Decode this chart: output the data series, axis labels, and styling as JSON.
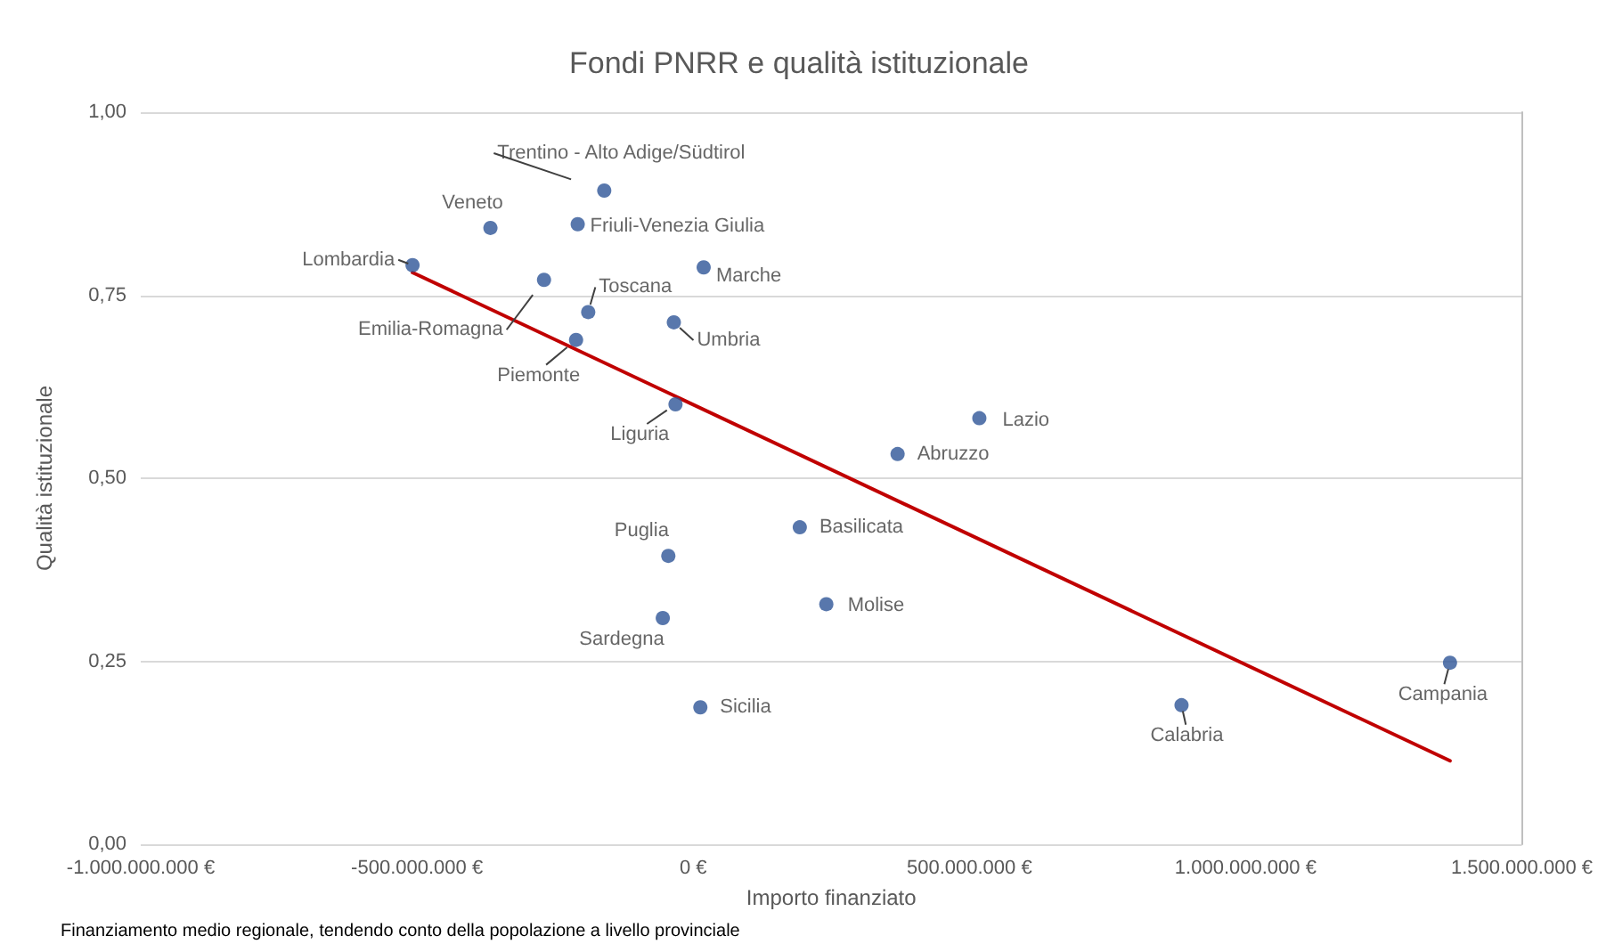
{
  "chart_data": {
    "type": "scatter",
    "title": "Fondi PNRR e qualità istituzionale",
    "xlabel": "Importo finanziato",
    "ylabel": "Qualità istituzionale",
    "x": [
      -161000000,
      -367000000,
      -209000000,
      -508000000,
      19000000,
      -270000000,
      -190000000,
      -35000000,
      -212000000,
      -32000000,
      518000000,
      370000000,
      193000000,
      -45000000,
      241000000,
      -55000000,
      13000000,
      884000000,
      1370000000
    ],
    "series": [
      {
        "color": "#2e5597",
        "values": [
          0.893,
          0.842,
          0.847,
          0.791,
          0.788,
          0.771,
          0.727,
          0.713,
          0.689,
          0.601,
          0.582,
          0.533,
          0.433,
          0.394,
          0.328,
          0.309,
          0.187,
          0.19,
          0.248
        ]
      },
      {
        "type": "line",
        "marker": "none",
        "color": "#c00000",
        "x": [
          -508000000,
          1370000000
        ],
        "values": [
          0.781,
          0.114
        ]
      }
    ],
    "marker": "circle",
    "xlim": [
      -1000000000,
      1500000000
    ],
    "xticks": [
      {
        "value": -1000000000,
        "label": "-1.000.000.000 €"
      },
      {
        "value": -500000000,
        "label": "-500.000.000 €"
      },
      {
        "value": 0,
        "label": "0 €"
      },
      {
        "value": 500000000,
        "label": "500.000.000 €"
      },
      {
        "value": 1000000000,
        "label": "1.000.000.000 €"
      },
      {
        "value": 1500000000,
        "label": "1.500.000.000 €"
      }
    ],
    "ylim": [
      0,
      1
    ],
    "yticks": [
      {
        "value": 0,
        "label": "0,00"
      },
      {
        "value": 0.25,
        "label": "0,25"
      },
      {
        "value": 0.5,
        "label": "0,50"
      },
      {
        "value": 0.75,
        "label": "0,75"
      },
      {
        "value": 1,
        "label": "1,00"
      }
    ],
    "grid": "y",
    "annotations": [
      {
        "text": "Trentino - Alto Adige/Südtirol",
        "x": -161000000,
        "y": 0.893
      },
      {
        "text": "Veneto",
        "x": -367000000,
        "y": 0.842
      },
      {
        "text": "Friuli-Venezia Giulia",
        "x": -209000000,
        "y": 0.847
      },
      {
        "text": "Lombardia",
        "x": -508000000,
        "y": 0.791
      },
      {
        "text": "Marche",
        "x": 19000000,
        "y": 0.788
      },
      {
        "text": "Emilia-Romagna",
        "x": -270000000,
        "y": 0.771
      },
      {
        "text": "Toscana",
        "x": -190000000,
        "y": 0.727
      },
      {
        "text": "Umbria",
        "x": -35000000,
        "y": 0.713
      },
      {
        "text": "Piemonte",
        "x": -212000000,
        "y": 0.689
      },
      {
        "text": "Liguria",
        "x": -32000000,
        "y": 0.601
      },
      {
        "text": "Lazio",
        "x": 518000000,
        "y": 0.582
      },
      {
        "text": "Abruzzo",
        "x": 370000000,
        "y": 0.533
      },
      {
        "text": "Basilicata",
        "x": 193000000,
        "y": 0.433
      },
      {
        "text": "Puglia",
        "x": -45000000,
        "y": 0.394
      },
      {
        "text": "Molise",
        "x": 241000000,
        "y": 0.328
      },
      {
        "text": "Sardegna",
        "x": -55000000,
        "y": 0.309
      },
      {
        "text": "Sicilia",
        "x": 13000000,
        "y": 0.187
      },
      {
        "text": "Calabria",
        "x": 884000000,
        "y": 0.19
      },
      {
        "text": "Campania",
        "x": 1370000000,
        "y": 0.248
      },
      "Finanziamento medio regionale, tendendo conto della popolazione a livello provinciale"
    ]
  }
}
